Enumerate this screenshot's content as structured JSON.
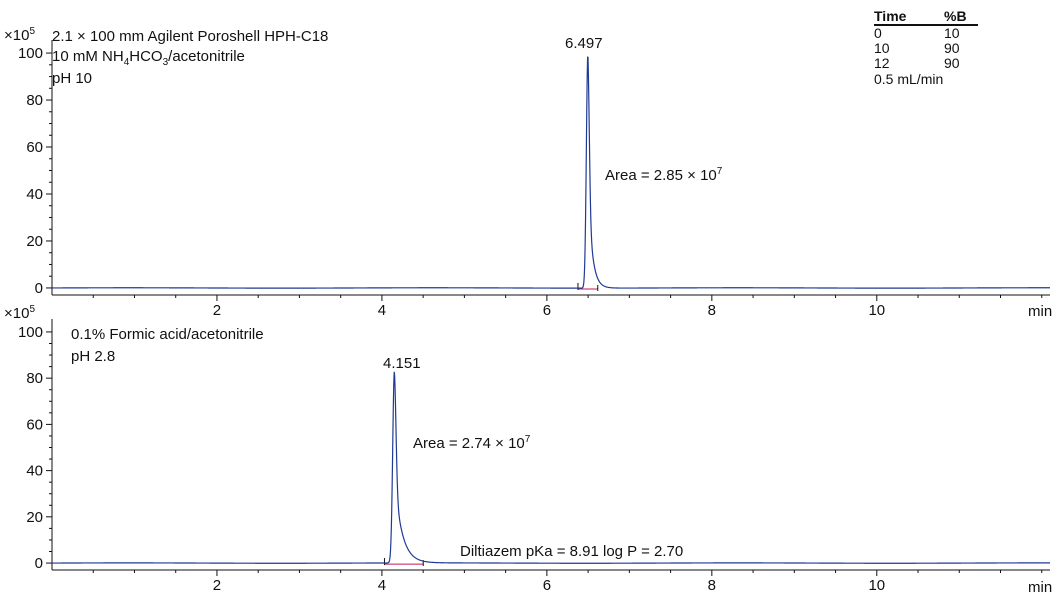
{
  "gradient": {
    "headers": [
      "Time",
      "%B"
    ],
    "rows": [
      [
        "0",
        "10"
      ],
      [
        "10",
        "90"
      ],
      [
        "12",
        "90"
      ]
    ],
    "flow": "0.5 mL/min"
  },
  "colors": {
    "trace": "#1f3a93",
    "baseline": "#c2185b",
    "axis": "#111111"
  },
  "chart_data": [
    {
      "type": "line",
      "x_unit": "min",
      "y_scale_label": "×10",
      "y_scale_exp": "5",
      "xlim": [
        0,
        12.1
      ],
      "ylim": [
        -3,
        103
      ],
      "xticks": [
        2,
        4,
        6,
        8,
        10
      ],
      "yticks": [
        0,
        20,
        40,
        60,
        80,
        100
      ],
      "info": {
        "line1": "2.1 × 100 mm Agilent Poroshell HPH-C18",
        "line2_a": "10 mM NH",
        "line2_b": "4",
        "line2_c": "HCO",
        "line2_d": "3",
        "line2_e": "/acetonitrile",
        "line3": "pH 10"
      },
      "peak_label": "6.497",
      "area_text": "Area = 2.85 × 10",
      "area_exp": "7",
      "peak": {
        "rt": 6.497,
        "height": 100,
        "sigma": 0.018,
        "tail": 0.05
      },
      "series": [
        {
          "values": [
            [
              0,
              0
            ],
            [
              6.4,
              0.1
            ],
            [
              6.45,
              3
            ],
            [
              6.47,
              35
            ],
            [
              6.497,
              100
            ],
            [
              6.52,
              40
            ],
            [
              6.55,
              8
            ],
            [
              6.6,
              2
            ],
            [
              6.7,
              0.5
            ],
            [
              7,
              0.2
            ],
            [
              9,
              0.3
            ],
            [
              12.1,
              0
            ]
          ]
        }
      ]
    },
    {
      "type": "line",
      "x_unit": "min",
      "y_scale_label": "×10",
      "y_scale_exp": "5",
      "xlim": [
        0,
        12.1
      ],
      "ylim": [
        -3,
        103
      ],
      "xticks": [
        2,
        4,
        6,
        8,
        10
      ],
      "yticks": [
        0,
        20,
        40,
        60,
        80,
        100
      ],
      "info": {
        "line1": "0.1% Formic acid/acetonitrile",
        "line2": "pH 2.8"
      },
      "peak_label": "4.151",
      "area_text": "Area = 2.74 × 10",
      "area_exp": "7",
      "note": "Diltiazem pKa = 8.91 log P = 2.70",
      "peak": {
        "rt": 4.151,
        "height": 83,
        "sigma": 0.02,
        "tail": 0.09
      },
      "series": [
        {
          "values": [
            [
              0,
              0
            ],
            [
              4.08,
              0.1
            ],
            [
              4.12,
              20
            ],
            [
              4.151,
              83
            ],
            [
              4.18,
              30
            ],
            [
              4.25,
              6
            ],
            [
              4.4,
              1
            ],
            [
              4.6,
              0.3
            ],
            [
              12.1,
              0
            ]
          ]
        }
      ]
    }
  ]
}
